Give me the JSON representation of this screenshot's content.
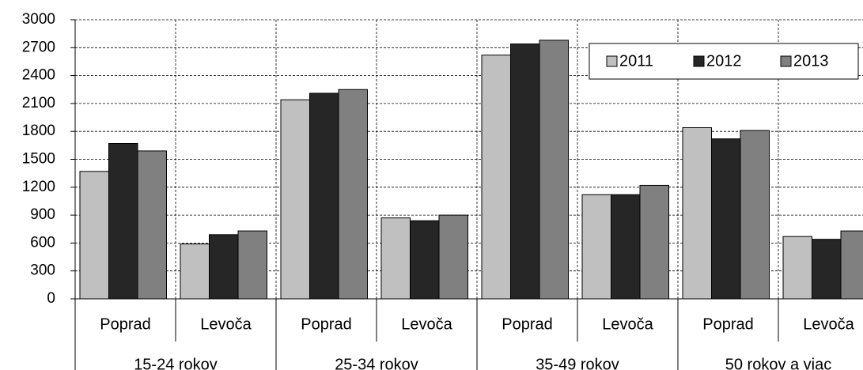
{
  "chart_data": {
    "type": "bar",
    "categories": [
      "Poprad",
      "Levoča",
      "Poprad",
      "Levoča",
      "Poprad",
      "Levoča",
      "Poprad",
      "Levoča"
    ],
    "groups": [
      "15-24 rokov",
      "25-34 rokov",
      "35-49 rokov",
      "50 rokov a viac"
    ],
    "series": [
      {
        "name": "2011",
        "color": "#c0c0c0",
        "values": [
          1370,
          590,
          2140,
          870,
          2620,
          1120,
          1840,
          670
        ]
      },
      {
        "name": "2012",
        "color": "#262626",
        "values": [
          1670,
          690,
          2210,
          840,
          2740,
          1120,
          1720,
          640
        ]
      },
      {
        "name": "2013",
        "color": "#808080",
        "values": [
          1590,
          730,
          2250,
          900,
          2780,
          1220,
          1810,
          730
        ]
      }
    ],
    "ylim": [
      0,
      3000
    ],
    "yticks": [
      0,
      300,
      600,
      900,
      1200,
      1500,
      1800,
      2100,
      2400,
      2700,
      3000
    ],
    "grid": true,
    "legend": "top-right"
  }
}
